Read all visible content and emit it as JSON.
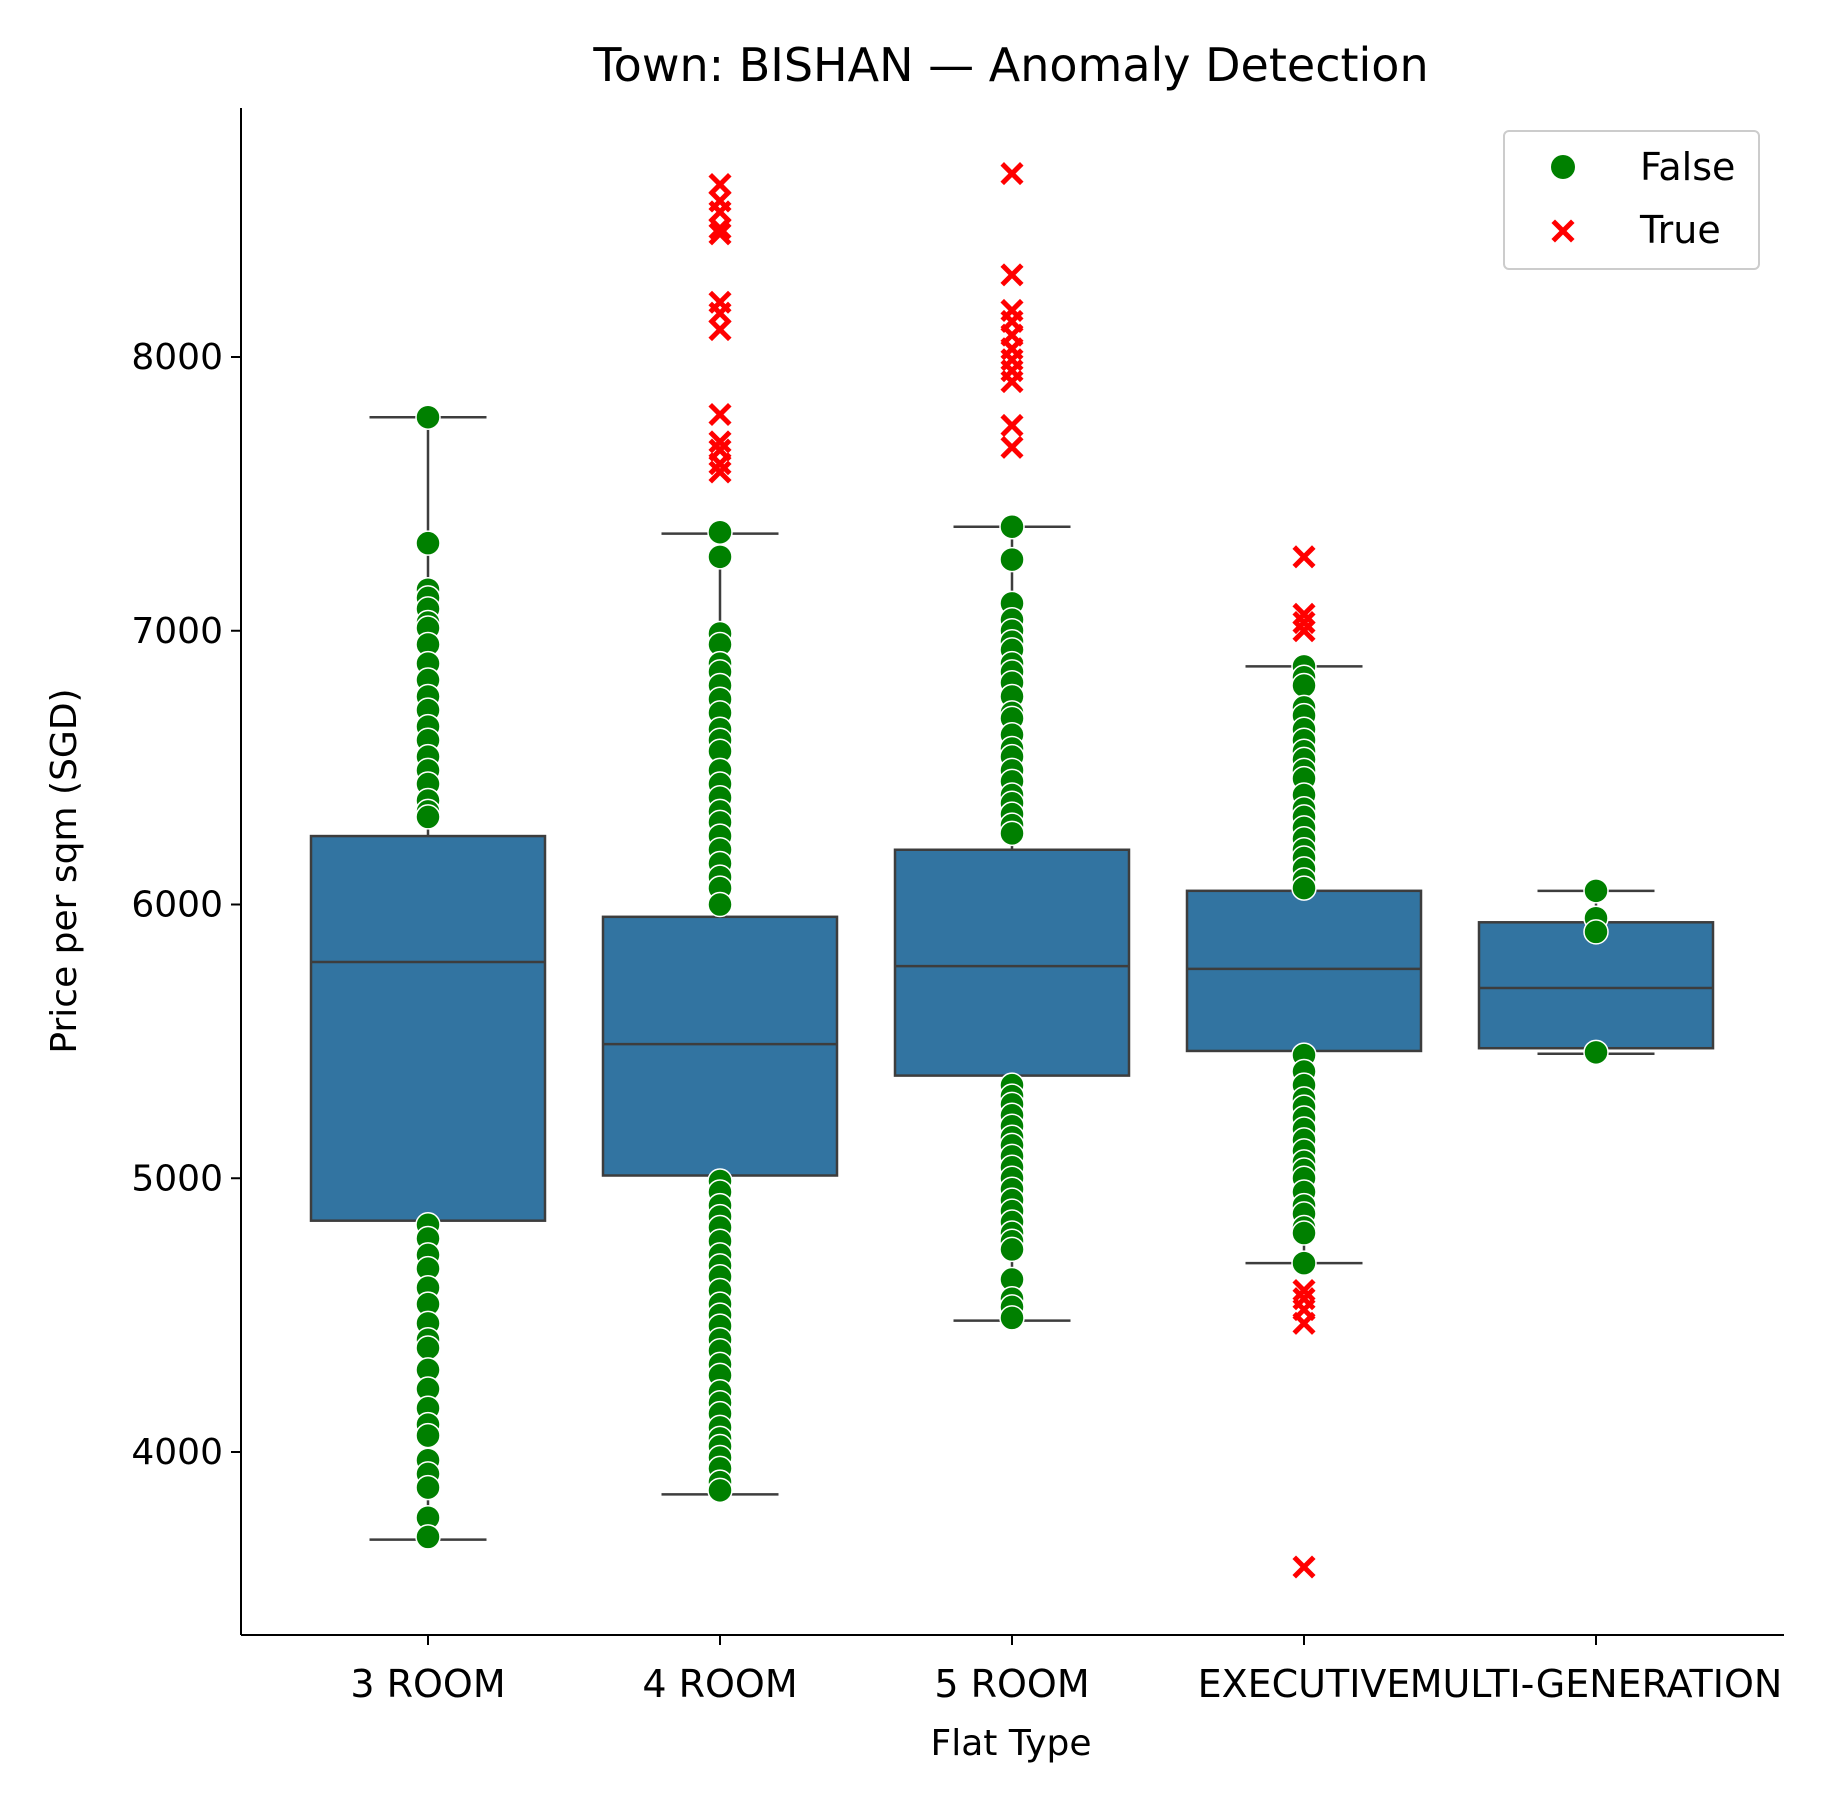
{
  "chart_data": {
    "type": "box",
    "title": "Town: BISHAN — Anomaly Detection",
    "xlabel": "Flat Type",
    "ylabel": "Price per sqm (SGD)",
    "categories": [
      "3 ROOM",
      "4 ROOM",
      "5 ROOM",
      "EXECUTIVE",
      "MULTI-GENERATION"
    ],
    "ylim": [
      3350,
      8920
    ],
    "yticks": [
      4000,
      5000,
      6000,
      7000,
      8000
    ],
    "box_color": "#3274a1",
    "boxes": [
      {
        "category": "3 ROOM",
        "whislo": 3680,
        "q1": 4845,
        "median": 5790,
        "q3": 6250,
        "whishi": 7780
      },
      {
        "category": "4 ROOM",
        "whislo": 3845,
        "q1": 5010,
        "median": 5490,
        "q3": 5955,
        "whishi": 7355
      },
      {
        "category": "5 ROOM",
        "whislo": 4480,
        "q1": 5375,
        "median": 5775,
        "q3": 6200,
        "whishi": 7380
      },
      {
        "category": "EXECUTIVE",
        "whislo": 4690,
        "q1": 5465,
        "median": 5765,
        "q3": 6050,
        "whishi": 6870
      },
      {
        "category": "MULTI-GENERATION",
        "whislo": 5455,
        "q1": 5475,
        "median": 5695,
        "q3": 5935,
        "whishi": 6050
      }
    ],
    "legend": {
      "position": "top-right",
      "entries": [
        {
          "label": "False",
          "marker": "circle",
          "color": "#008000"
        },
        {
          "label": "True",
          "marker": "x",
          "color": "#ff0000"
        }
      ]
    },
    "points": {
      "false": [
        {
          "category": "3 ROOM",
          "values": [
            7780,
            7320,
            7150,
            7120,
            7080,
            7030,
            7010,
            6950,
            6880,
            6820,
            6760,
            6710,
            6650,
            6600,
            6540,
            6490,
            6440,
            6380,
            6340,
            6320,
            4830,
            4780,
            4720,
            4670,
            4600,
            4540,
            4470,
            4410,
            4380,
            4300,
            4230,
            4160,
            4100,
            4060,
            3970,
            3920,
            3870,
            3760,
            3690
          ]
        },
        {
          "category": "4 ROOM",
          "values": [
            7360,
            7270,
            6990,
            6950,
            6880,
            6850,
            6800,
            6750,
            6700,
            6640,
            6600,
            6560,
            6490,
            6440,
            6390,
            6340,
            6300,
            6250,
            6200,
            6150,
            6100,
            6060,
            6000,
            4990,
            4950,
            4900,
            4860,
            4820,
            4770,
            4720,
            4680,
            4640,
            4590,
            4540,
            4500,
            4460,
            4410,
            4370,
            4320,
            4280,
            4220,
            4180,
            4140,
            4090,
            4050,
            4020,
            3980,
            3940,
            3890,
            3860
          ]
        },
        {
          "category": "5 ROOM",
          "values": [
            7380,
            7260,
            7100,
            7040,
            7000,
            6960,
            6930,
            6880,
            6850,
            6810,
            6760,
            6700,
            6680,
            6620,
            6570,
            6540,
            6490,
            6450,
            6400,
            6370,
            6330,
            6290,
            6260,
            5340,
            5300,
            5270,
            5230,
            5190,
            5150,
            5120,
            5080,
            5040,
            5000,
            4960,
            4920,
            4880,
            4840,
            4800,
            4770,
            4740,
            4630,
            4560,
            4530,
            4490
          ]
        },
        {
          "category": "EXECUTIVE",
          "values": [
            6870,
            6830,
            6800,
            6720,
            6690,
            6640,
            6600,
            6560,
            6530,
            6490,
            6460,
            6400,
            6350,
            6320,
            6280,
            6240,
            6200,
            6170,
            6130,
            6090,
            6060,
            5450,
            5390,
            5340,
            5290,
            5260,
            5220,
            5180,
            5140,
            5100,
            5060,
            5030,
            5000,
            4950,
            4900,
            4870,
            4820,
            4800,
            4690
          ]
        },
        {
          "category": "MULTI-GENERATION",
          "values": [
            6050,
            5950,
            5900,
            5460
          ]
        }
      ],
      "true": [
        {
          "category": "4 ROOM",
          "values": [
            8630,
            8570,
            8530,
            8470,
            8450,
            8200,
            8160,
            8100,
            7790,
            7690,
            7660,
            7610,
            7580
          ]
        },
        {
          "category": "5 ROOM",
          "values": [
            8670,
            8300,
            8170,
            8130,
            8080,
            8030,
            7990,
            7950,
            7910,
            7750,
            7670
          ]
        },
        {
          "category": "EXECUTIVE",
          "values": [
            7270,
            7060,
            7030,
            7000,
            4590,
            4560,
            4520,
            4470,
            3580
          ]
        }
      ]
    }
  }
}
